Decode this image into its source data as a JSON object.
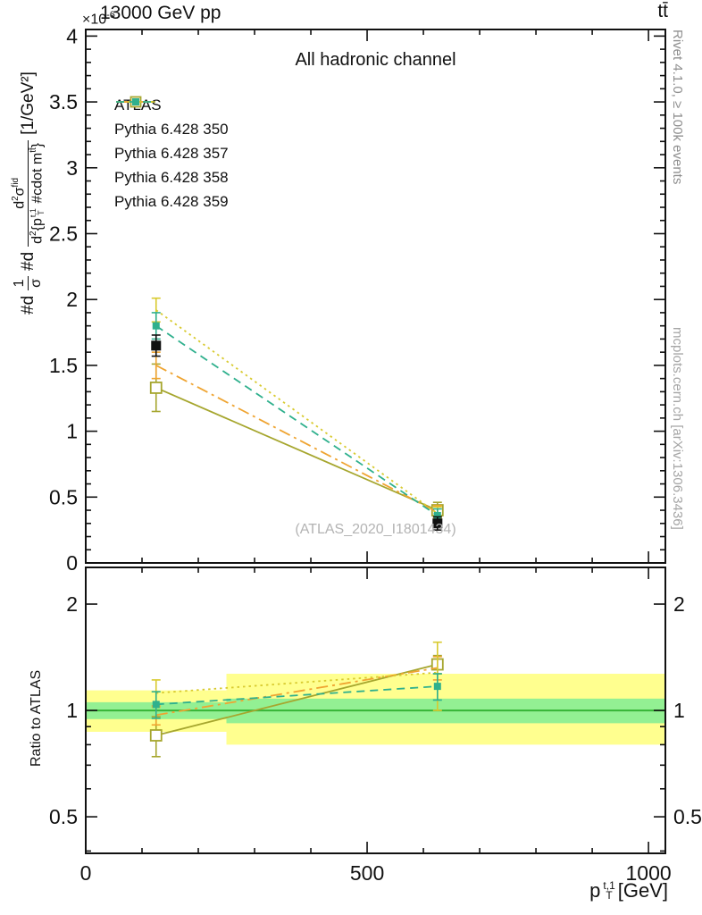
{
  "header": {
    "left": "13000 GeV pp",
    "right": "tt̄"
  },
  "title": "All hadronic channel",
  "watermark": "(ATLAS_2020_I1801434)",
  "credits": {
    "top": "Rivet 4.1.0, ≥ 100k events",
    "bottom": "mcplots.cern.ch [arXiv:1306.3436]"
  },
  "axes": {
    "exponent_base": "×10",
    "exponent_sup": "-6",
    "ratio_ylabel": "Ratio to ATLAS",
    "x_base": "p",
    "x_sub": "T",
    "x_sup": "t,1",
    "x_unit": "[GeV]",
    "ylabel": {
      "p1": "#d",
      "f1n": "1",
      "f1d": "σ",
      "p2": "#d",
      "f2n_base": "d",
      "f2n_sup2": "2",
      "f2n_sig": "σ",
      "f2n_sup": "fid",
      "f2d_base": "d",
      "f2d_sup2": "2",
      "f2d_open": "{p",
      "f2d_sup": "t,1",
      "f2d_sub": "T",
      "f2d_mid": " #cdot m",
      "f2d_msup": "tt̄",
      "f2d_close": "}",
      "unit": "[1/GeV²]"
    }
  },
  "chart_data": {
    "type": "line",
    "x": [
      125,
      625
    ],
    "xlim": [
      0,
      1030
    ],
    "xticks": [
      0,
      500,
      1000
    ],
    "x_minor_step": 100,
    "xlabel": "p_T^{t,1} [GeV]",
    "top_panel": {
      "ylim": [
        0,
        4.05
      ],
      "yticks": [
        0,
        0.5,
        1,
        1.5,
        2,
        2.5,
        3,
        3.5,
        4
      ],
      "y_minor_step": 0.1,
      "scale_exponent": "×10^-6",
      "unit": "1/GeV^2"
    },
    "ratio_panel": {
      "yscale": "log",
      "ylim": [
        0.394,
        2.54
      ],
      "yticks": [
        0.5,
        1,
        2
      ],
      "y_minor": [
        0.4,
        0.6,
        0.7,
        0.8,
        0.9
      ],
      "reference_line": 1.0,
      "band_colors": {
        "outer": "#ffff8f",
        "inner": "#93f093",
        "line": "#37b437"
      },
      "bands": [
        {
          "x0": 0,
          "x1": 250,
          "outer": [
            0.87,
            1.14
          ],
          "inner": [
            0.945,
            1.055
          ]
        },
        {
          "x0": 250,
          "x1": 1030,
          "outer": [
            0.8,
            1.27
          ],
          "inner": [
            0.92,
            1.08
          ]
        }
      ]
    },
    "series": [
      {
        "name": "ATLAS",
        "color": "#111111",
        "marker": "square-filled",
        "marker_size": 11,
        "line": "none",
        "values": [
          1.65,
          0.3
        ],
        "errors": [
          0.08,
          0.05
        ],
        "ratio": null,
        "ratio_errors": null
      },
      {
        "name": "Pythia 6.428 350",
        "color": "#a6a62e",
        "marker": "square-open",
        "marker_size": 12,
        "line": "solid",
        "values": [
          1.33,
          0.4
        ],
        "errors": [
          0.18,
          0.06
        ],
        "ratio": [
          0.85,
          1.35
        ],
        "ratio_errors": [
          0.11,
          0.08
        ]
      },
      {
        "name": "Pythia 6.428 357",
        "color": "#efa431",
        "marker": "none",
        "marker_size": 0,
        "line": "dashdot",
        "values": [
          1.5,
          0.385
        ],
        "errors": [
          0.1,
          0.05
        ],
        "ratio": [
          0.97,
          1.32
        ],
        "ratio_errors": [
          0.06,
          0.1
        ]
      },
      {
        "name": "Pythia 6.428 358",
        "color": "#d8ca2f",
        "marker": "none",
        "marker_size": 0,
        "line": "dotted",
        "values": [
          1.92,
          0.375
        ],
        "errors": [
          0.09,
          0.05
        ],
        "ratio": [
          1.12,
          1.28
        ],
        "ratio_errors": [
          0.1,
          0.28
        ]
      },
      {
        "name": "Pythia 6.428 359",
        "color": "#2fb08d",
        "marker": "square-filled",
        "marker_size": 8,
        "line": "dashed",
        "values": [
          1.8,
          0.36
        ],
        "errors": [
          0.1,
          0.05
        ],
        "ratio": [
          1.04,
          1.17
        ],
        "ratio_errors": [
          0.09,
          0.1
        ]
      }
    ]
  }
}
